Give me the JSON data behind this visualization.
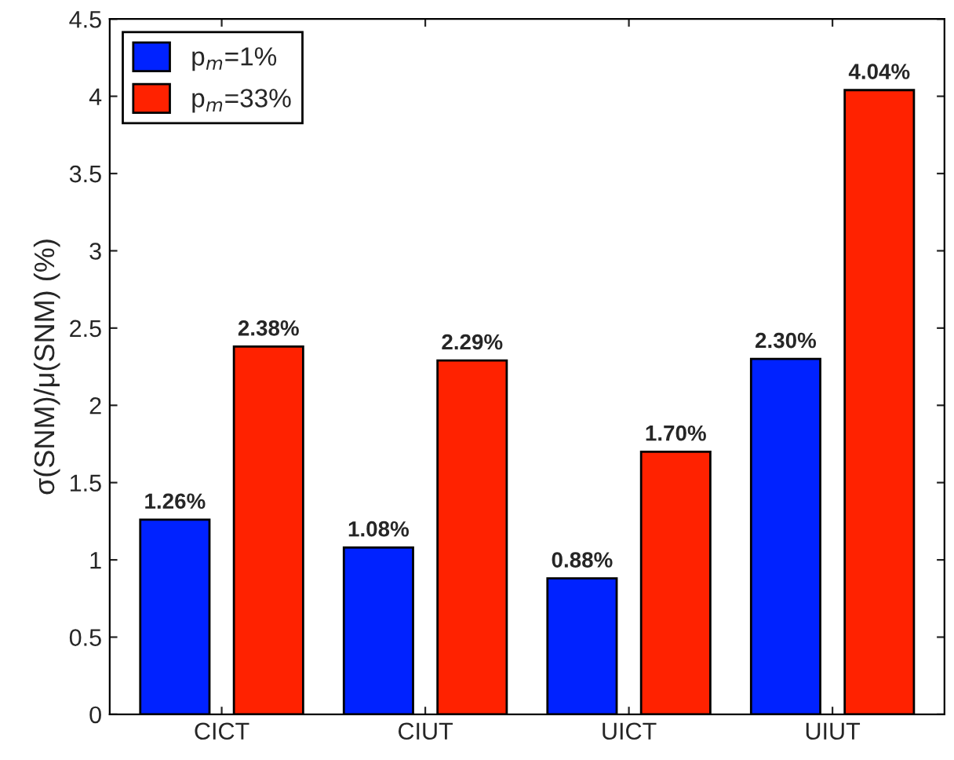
{
  "chart_data": {
    "type": "bar",
    "ylabel": "σ(SNM)/μ(SNM) (%)",
    "categories": [
      "CICT",
      "CIUT",
      "UICT",
      "UIUT"
    ],
    "series": [
      {
        "name": "p$_{m}$=1%",
        "color": "#0022ff",
        "values": [
          1.26,
          1.08,
          0.88,
          2.3
        ],
        "value_labels": [
          "1.26%",
          "1.08%",
          "0.88%",
          "2.30%"
        ]
      },
      {
        "name": "p$_{m}$=33%",
        "color": "#ff2200",
        "values": [
          2.38,
          2.29,
          1.7,
          4.04
        ],
        "value_labels": [
          "2.38%",
          "2.29%",
          "1.70%",
          "4.04%"
        ]
      }
    ],
    "ylim": [
      0,
      4.5
    ],
    "yticks": [
      0,
      0.5,
      1,
      1.5,
      2,
      2.5,
      3,
      3.5,
      4,
      4.5
    ],
    "grid": false,
    "legend": "top left"
  }
}
